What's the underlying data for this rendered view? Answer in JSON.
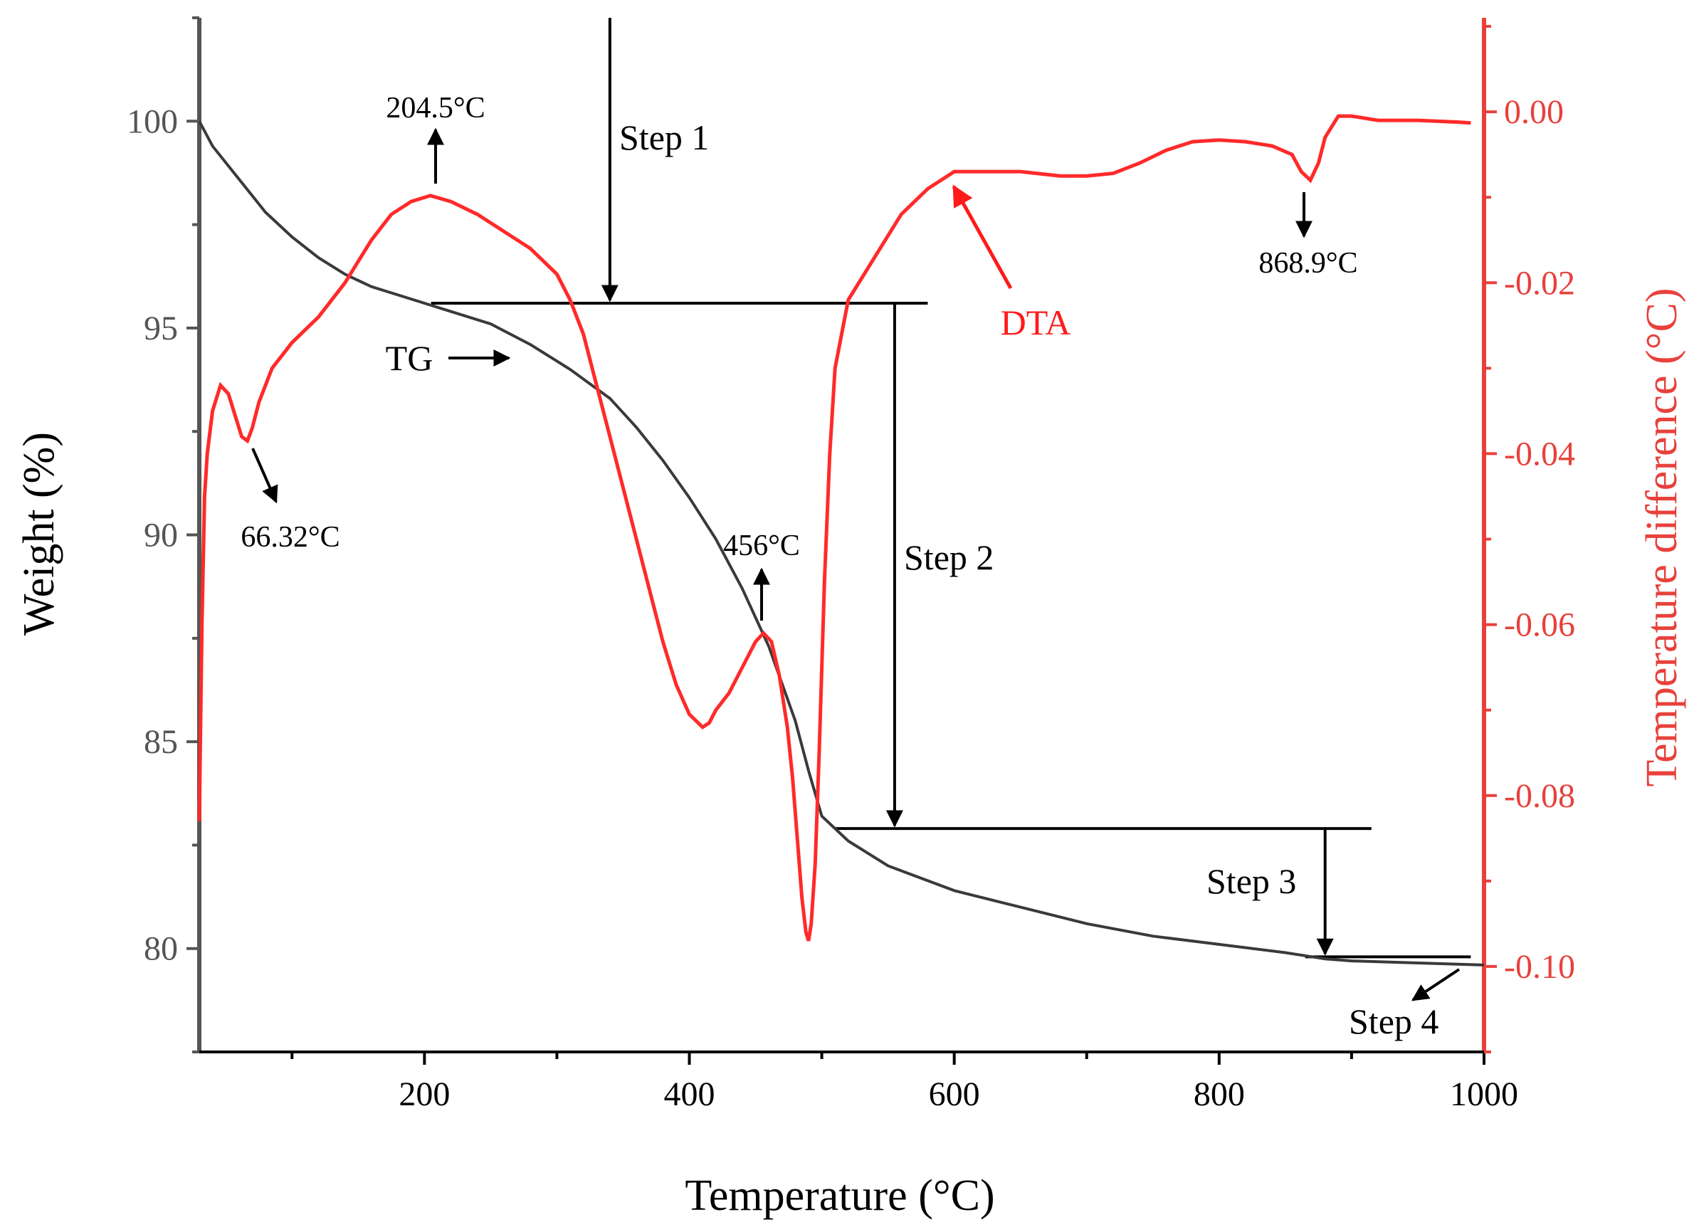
{
  "chart_data": {
    "type": "line",
    "xlabel": "Temperature (°C)",
    "ylabel_left": "Weight (%)",
    "ylabel_right": "Temperature difference (°C)",
    "xlim": [
      30,
      1000
    ],
    "ylim_left": [
      77.5,
      102.5
    ],
    "ylim_right": [
      -0.11,
      0.011
    ],
    "x_ticks": [
      200,
      400,
      600,
      800,
      1000
    ],
    "y_ticks_left": [
      80,
      85,
      90,
      95,
      100
    ],
    "y_ticks_right": [
      0.0,
      -0.02,
      -0.04,
      -0.06,
      -0.08,
      -0.1
    ],
    "y_tick_labels_right": [
      "0.00",
      "-0.02",
      "-0.04",
      "-0.06",
      "-0.08",
      "-0.10"
    ],
    "colors": {
      "tg": "#3a3a3a",
      "dta": "#ff2a2a",
      "axis_left": "#555555",
      "axis_right": "#e8413c"
    },
    "series": [
      {
        "name": "TG",
        "axis": "left",
        "x": [
          30,
          40,
          60,
          80,
          100,
          120,
          140,
          160,
          180,
          200,
          220,
          250,
          280,
          310,
          340,
          360,
          380,
          400,
          420,
          440,
          460,
          480,
          490,
          500,
          520,
          550,
          600,
          650,
          700,
          750,
          800,
          850,
          870,
          880,
          900,
          950,
          1000
        ],
        "y": [
          100,
          99.4,
          98.6,
          97.8,
          97.2,
          96.7,
          96.3,
          96.0,
          95.8,
          95.6,
          95.4,
          95.1,
          94.6,
          94.0,
          93.3,
          92.6,
          91.8,
          90.9,
          89.9,
          88.7,
          87.3,
          85.5,
          84.3,
          83.2,
          82.6,
          82.0,
          81.4,
          81.0,
          80.6,
          80.3,
          80.1,
          79.9,
          79.8,
          79.75,
          79.7,
          79.65,
          79.6
        ]
      },
      {
        "name": "DTA",
        "axis": "right",
        "x": [
          30,
          32,
          34,
          36,
          40,
          46,
          52,
          58,
          62,
          66.32,
          70,
          75,
          85,
          100,
          120,
          140,
          160,
          175,
          190,
          204.5,
          220,
          240,
          260,
          280,
          300,
          310,
          320,
          330,
          340,
          350,
          360,
          370,
          380,
          390,
          400,
          410,
          415,
          420,
          430,
          440,
          450,
          456,
          462,
          468,
          474,
          478,
          482,
          485,
          488,
          490,
          492,
          495,
          498,
          502,
          506,
          510,
          520,
          540,
          560,
          580,
          600,
          620,
          650,
          680,
          700,
          720,
          740,
          760,
          780,
          800,
          820,
          840,
          855,
          862,
          868.9,
          875,
          880,
          890,
          900,
          920,
          950,
          980,
          990
        ],
        "y": [
          -0.083,
          -0.06,
          -0.045,
          -0.04,
          -0.035,
          -0.032,
          -0.033,
          -0.036,
          -0.038,
          -0.0385,
          -0.037,
          -0.034,
          -0.03,
          -0.027,
          -0.024,
          -0.02,
          -0.015,
          -0.012,
          -0.0105,
          -0.0098,
          -0.0105,
          -0.012,
          -0.014,
          -0.016,
          -0.019,
          -0.022,
          -0.026,
          -0.032,
          -0.038,
          -0.044,
          -0.05,
          -0.056,
          -0.062,
          -0.067,
          -0.0705,
          -0.072,
          -0.0715,
          -0.07,
          -0.068,
          -0.065,
          -0.062,
          -0.061,
          -0.062,
          -0.066,
          -0.072,
          -0.078,
          -0.086,
          -0.092,
          -0.096,
          -0.097,
          -0.095,
          -0.088,
          -0.075,
          -0.055,
          -0.04,
          -0.03,
          -0.022,
          -0.017,
          -0.012,
          -0.009,
          -0.007,
          -0.007,
          -0.007,
          -0.0075,
          -0.0075,
          -0.0072,
          -0.006,
          -0.0045,
          -0.0035,
          -0.0033,
          -0.0035,
          -0.004,
          -0.005,
          -0.007,
          -0.008,
          -0.006,
          -0.003,
          -0.0005,
          -0.0005,
          -0.001,
          -0.001,
          -0.0012,
          -0.0013
        ]
      }
    ],
    "annotations": {
      "peak_204": "204.5°C",
      "peak_66": "66.32°C",
      "peak_456": "456°C",
      "peak_868": "868.9°C",
      "tg_label": "TG",
      "dta_label": "DTA",
      "step1": "Step 1",
      "step2": "Step 2",
      "step3": "Step 3",
      "step4": "Step 4"
    },
    "step_levels": {
      "step1": {
        "x": 340,
        "from": 102.5,
        "to": 95.6,
        "line_x_range": [
          205,
          580
        ]
      },
      "step2": {
        "x": 555,
        "from": 95.6,
        "to": 82.9,
        "line_x_range": [
          510,
          915
        ]
      },
      "step3": {
        "x": 880,
        "from": 82.9,
        "to": 79.8,
        "line_x_range": [
          865,
          990
        ]
      }
    }
  }
}
